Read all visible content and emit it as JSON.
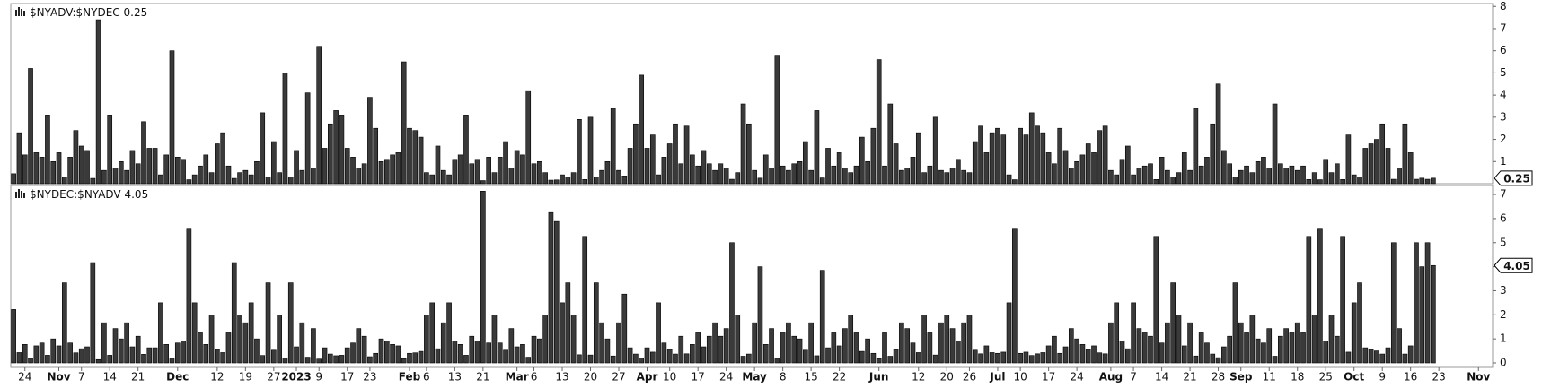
{
  "chart_data": [
    {
      "type": "bar",
      "title": "$NYADV:$NYDEC",
      "color": "#3a3a3a",
      "ylim": [
        0,
        8.05
      ],
      "yticks": [
        1,
        2,
        3,
        4,
        5,
        6,
        7,
        8
      ],
      "values": [
        0.45,
        2.3,
        1.3,
        5.2,
        1.4,
        1.2,
        3.1,
        1.0,
        1.4,
        0.3,
        1.2,
        2.4,
        1.7,
        1.5,
        0.24,
        7.4,
        0.6,
        3.1,
        0.7,
        1.0,
        0.6,
        1.5,
        0.9,
        2.8,
        1.6,
        1.6,
        0.4,
        1.3,
        6.0,
        1.2,
        1.1,
        0.18,
        0.4,
        0.8,
        1.3,
        0.5,
        1.8,
        2.3,
        0.8,
        0.24,
        0.5,
        0.6,
        0.4,
        1.0,
        3.2,
        0.3,
        1.9,
        0.5,
        5.0,
        0.3,
        1.5,
        0.6,
        4.1,
        0.7,
        6.2,
        1.6,
        2.7,
        3.3,
        3.1,
        1.6,
        1.2,
        0.7,
        0.9,
        3.9,
        2.5,
        1.0,
        1.1,
        1.3,
        1.4,
        5.5,
        2.5,
        2.4,
        2.1,
        0.5,
        0.4,
        1.7,
        0.6,
        0.4,
        1.1,
        1.3,
        3.1,
        0.9,
        1.1,
        0.14,
        1.2,
        0.5,
        1.2,
        1.9,
        0.7,
        1.5,
        1.3,
        4.2,
        0.9,
        1.0,
        0.5,
        0.16,
        0.17,
        0.4,
        0.3,
        0.5,
        2.9,
        0.19,
        3.0,
        0.3,
        0.6,
        1.0,
        3.4,
        0.6,
        0.35,
        1.6,
        2.7,
        4.9,
        1.6,
        2.2,
        0.4,
        1.2,
        1.8,
        2.7,
        0.9,
        2.6,
        1.3,
        0.8,
        1.5,
        0.9,
        0.6,
        0.9,
        0.7,
        0.2,
        0.5,
        3.6,
        2.7,
        0.6,
        0.25,
        1.3,
        0.7,
        5.8,
        0.8,
        0.6,
        0.9,
        1.0,
        1.9,
        0.6,
        3.3,
        0.26,
        1.6,
        0.8,
        1.4,
        0.7,
        0.5,
        0.8,
        2.1,
        1.0,
        2.5,
        5.6,
        0.8,
        3.6,
        1.8,
        0.6,
        0.7,
        1.2,
        2.3,
        0.5,
        0.8,
        3.0,
        0.6,
        0.5,
        0.7,
        1.1,
        0.6,
        0.5,
        1.9,
        2.6,
        1.4,
        2.3,
        2.5,
        2.2,
        0.4,
        0.18,
        2.5,
        2.2,
        3.2,
        2.6,
        2.3,
        1.4,
        0.9,
        2.5,
        1.5,
        0.7,
        1.0,
        1.3,
        1.8,
        1.4,
        2.4,
        2.6,
        0.6,
        0.4,
        1.1,
        1.7,
        0.4,
        0.7,
        0.8,
        0.9,
        0.19,
        1.2,
        0.6,
        0.3,
        0.5,
        1.4,
        0.6,
        3.4,
        0.8,
        1.2,
        2.7,
        4.5,
        1.5,
        0.9,
        0.3,
        0.6,
        0.8,
        0.5,
        1.0,
        1.2,
        0.7,
        3.6,
        0.9,
        0.7,
        0.8,
        0.6,
        0.8,
        0.19,
        0.5,
        0.18,
        1.1,
        0.5,
        0.9,
        0.19,
        2.2,
        0.4,
        0.3,
        1.6,
        1.8,
        2.0,
        2.7,
        1.6,
        0.2,
        0.7,
        2.7,
        1.4,
        0.2,
        0.25,
        0.2,
        0.25,
        null,
        null,
        null,
        null,
        null,
        null,
        null,
        null,
        null,
        null
      ]
    },
    {
      "type": "bar",
      "title": "$NYDEC:$NYADV",
      "color": "#3a3a3a",
      "ylim": [
        0,
        7.3
      ],
      "yticks": [
        0,
        1,
        2,
        3,
        4,
        5,
        6,
        7
      ],
      "values": [
        2.22,
        0.43,
        0.77,
        0.19,
        0.71,
        0.83,
        0.32,
        1.0,
        0.71,
        3.33,
        0.83,
        0.42,
        0.59,
        0.67,
        4.17,
        0.14,
        1.67,
        0.32,
        1.43,
        1.0,
        1.67,
        0.67,
        1.11,
        0.36,
        0.63,
        0.63,
        2.5,
        0.77,
        0.17,
        0.83,
        0.91,
        5.56,
        2.5,
        1.25,
        0.77,
        2.0,
        0.56,
        0.43,
        1.25,
        4.17,
        2.0,
        1.67,
        2.5,
        1.0,
        0.31,
        3.33,
        0.53,
        2.0,
        0.2,
        3.33,
        0.67,
        1.67,
        0.24,
        1.43,
        0.16,
        0.63,
        0.37,
        0.3,
        0.32,
        0.63,
        0.83,
        1.43,
        1.11,
        0.26,
        0.4,
        1.0,
        0.91,
        0.77,
        0.71,
        0.18,
        0.4,
        0.42,
        0.48,
        2.0,
        2.5,
        0.59,
        1.67,
        2.5,
        0.91,
        0.77,
        0.32,
        1.11,
        0.91,
        7.14,
        0.83,
        2.0,
        0.83,
        0.53,
        1.43,
        0.67,
        0.77,
        0.24,
        1.11,
        1.0,
        2.0,
        6.25,
        5.88,
        2.5,
        3.33,
        2.0,
        0.34,
        5.26,
        0.33,
        3.33,
        1.67,
        1.0,
        0.29,
        1.67,
        2.86,
        0.63,
        0.37,
        0.2,
        0.63,
        0.45,
        2.5,
        0.83,
        0.56,
        0.37,
        1.11,
        0.38,
        0.77,
        1.25,
        0.67,
        1.11,
        1.67,
        1.11,
        1.43,
        5.0,
        2.0,
        0.28,
        0.37,
        1.67,
        4.0,
        0.77,
        1.43,
        0.17,
        1.25,
        1.67,
        1.11,
        1.0,
        0.53,
        1.67,
        0.3,
        3.85,
        0.63,
        1.25,
        0.71,
        1.43,
        2.0,
        1.25,
        0.48,
        1.0,
        0.4,
        0.18,
        1.25,
        0.28,
        0.56,
        1.67,
        1.43,
        0.83,
        0.43,
        2.0,
        1.25,
        0.33,
        1.67,
        2.0,
        1.43,
        0.91,
        1.67,
        2.0,
        0.53,
        0.38,
        0.71,
        0.43,
        0.4,
        0.45,
        2.5,
        5.56,
        0.4,
        0.45,
        0.31,
        0.38,
        0.43,
        0.71,
        1.11,
        0.4,
        0.67,
        1.43,
        1.0,
        0.77,
        0.56,
        0.71,
        0.42,
        0.38,
        1.67,
        2.5,
        0.91,
        0.59,
        2.5,
        1.43,
        1.25,
        1.11,
        5.26,
        0.83,
        1.67,
        3.33,
        2.0,
        0.71,
        1.67,
        0.29,
        1.25,
        0.83,
        0.37,
        0.22,
        0.67,
        1.11,
        3.33,
        1.67,
        1.25,
        2.0,
        1.0,
        0.83,
        1.43,
        0.28,
        1.11,
        1.43,
        1.25,
        1.67,
        1.25,
        5.26,
        2.0,
        5.56,
        0.91,
        2.0,
        1.11,
        5.26,
        0.45,
        2.5,
        3.33,
        0.63,
        0.56,
        0.5,
        0.37,
        0.63,
        5.0,
        1.43,
        0.37,
        0.71,
        5.0,
        4.0,
        5.0,
        4.05,
        null,
        null,
        null,
        null,
        null,
        null,
        null,
        null,
        null,
        null
      ],
      "categories": [
        null,
        null,
        "24",
        null,
        null,
        null,
        null,
        null,
        "Nov",
        null,
        null,
        null,
        "7",
        null,
        null,
        null,
        null,
        "14",
        null,
        null,
        null,
        null,
        "21",
        null,
        null,
        null,
        null,
        null,
        null,
        "Dec",
        null,
        null,
        null,
        null,
        null,
        null,
        "12",
        null,
        null,
        null,
        null,
        "19",
        null,
        null,
        null,
        null,
        "27",
        null,
        null,
        null,
        "2023",
        null,
        null,
        null,
        "9",
        null,
        null,
        null,
        null,
        "17",
        null,
        null,
        null,
        "23",
        null,
        null,
        null,
        null,
        null,
        null,
        "Feb",
        null,
        null,
        "6",
        null,
        null,
        null,
        null,
        "13",
        null,
        null,
        null,
        null,
        "21",
        null,
        null,
        null,
        null,
        null,
        "Mar",
        null,
        null,
        "6",
        null,
        null,
        null,
        null,
        "13",
        null,
        null,
        null,
        null,
        "20",
        null,
        null,
        null,
        null,
        "27",
        null,
        null,
        null,
        null,
        "Apr",
        null,
        null,
        null,
        "10",
        null,
        null,
        null,
        null,
        "17",
        null,
        null,
        null,
        null,
        "24",
        null,
        null,
        null,
        null,
        "May",
        null,
        null,
        null,
        null,
        "8",
        null,
        null,
        null,
        null,
        "15",
        null,
        null,
        null,
        null,
        "22",
        null,
        null,
        null,
        null,
        null,
        null,
        "Jun",
        null,
        null,
        null,
        null,
        null,
        null,
        "12",
        null,
        null,
        null,
        null,
        "20",
        null,
        null,
        null,
        "26",
        null,
        null,
        null,
        null,
        "Jul",
        null,
        null,
        null,
        "10",
        null,
        null,
        null,
        null,
        "17",
        null,
        null,
        null,
        null,
        "24",
        null,
        null,
        null,
        null,
        null,
        "Aug",
        null,
        null,
        null,
        "7",
        null,
        null,
        null,
        null,
        "14",
        null,
        null,
        null,
        null,
        "21",
        null,
        null,
        null,
        null,
        "28",
        null,
        null,
        null,
        "Sep",
        null,
        null,
        null,
        null,
        "11",
        null,
        null,
        null,
        null,
        "18",
        null,
        null,
        null,
        null,
        "25",
        null,
        null,
        null,
        null,
        "Oct",
        null,
        null,
        null,
        null,
        "9",
        null,
        null,
        null,
        null,
        "16",
        null,
        null,
        null,
        null,
        "23",
        null,
        null,
        null,
        null,
        null,
        null,
        "Nov",
        null,
        null
      ]
    }
  ]
}
